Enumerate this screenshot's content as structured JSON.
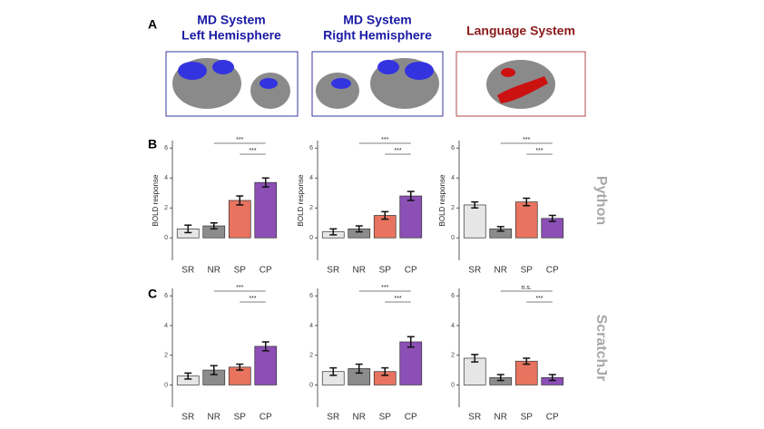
{
  "panel_labels": [
    "A",
    "B",
    "C"
  ],
  "systems": [
    {
      "title_lines": [
        "MD System",
        "Left Hemisphere"
      ],
      "color": "#1a1aa6"
    },
    {
      "title_lines": [
        "MD System",
        "Right Hemisphere"
      ],
      "color": "#1a1aa6"
    },
    {
      "title_lines": [
        "Language System"
      ],
      "color": "#8b1a1a"
    }
  ],
  "chart_data": [
    {
      "type": "bar",
      "categories": [
        "SR",
        "NR",
        "SP",
        "CP"
      ],
      "values": [
        0.6,
        0.8,
        2.5,
        3.7
      ],
      "errors": [
        0.25,
        0.2,
        0.3,
        0.3
      ],
      "colors": [
        "#e6e6e6",
        "#8c8c8c",
        "#e8735f",
        "#8c4fb5"
      ],
      "ylim": [
        -1.5,
        6.5
      ],
      "yticks": [
        0,
        2,
        4,
        6
      ],
      "ylabel": "BOLD response",
      "significance": [
        "***",
        "***"
      ]
    },
    {
      "type": "bar",
      "categories": [
        "SR",
        "NR",
        "SP",
        "CP"
      ],
      "values": [
        0.4,
        0.6,
        1.5,
        2.8
      ],
      "errors": [
        0.2,
        0.2,
        0.25,
        0.3
      ],
      "colors": [
        "#e6e6e6",
        "#8c8c8c",
        "#e8735f",
        "#8c4fb5"
      ],
      "ylim": [
        -1.5,
        6.5
      ],
      "yticks": [
        0,
        2,
        4,
        6
      ],
      "ylabel": "BOLD response",
      "significance": [
        "***",
        "***"
      ]
    },
    {
      "type": "bar",
      "categories": [
        "SR",
        "NR",
        "SP",
        "CP"
      ],
      "values": [
        2.2,
        0.6,
        2.4,
        1.3
      ],
      "errors": [
        0.2,
        0.15,
        0.25,
        0.2
      ],
      "colors": [
        "#e6e6e6",
        "#8c8c8c",
        "#e8735f",
        "#8c4fb5"
      ],
      "ylim": [
        -1.5,
        6.5
      ],
      "yticks": [
        0,
        2,
        4,
        6
      ],
      "ylabel": "BOLD response",
      "significance": [
        "***",
        "***"
      ],
      "row_label": "Python"
    },
    {
      "type": "bar",
      "categories": [
        "SR",
        "NR",
        "SP",
        "CP"
      ],
      "values": [
        0.6,
        1.0,
        1.2,
        2.6
      ],
      "errors": [
        0.2,
        0.3,
        0.2,
        0.3
      ],
      "colors": [
        "#e6e6e6",
        "#8c8c8c",
        "#e8735f",
        "#8c4fb5"
      ],
      "ylim": [
        -1.5,
        6.5
      ],
      "yticks": [
        0,
        2,
        4,
        6
      ],
      "significance": [
        "***",
        "***"
      ]
    },
    {
      "type": "bar",
      "categories": [
        "SR",
        "NR",
        "SP",
        "CP"
      ],
      "values": [
        0.9,
        1.1,
        0.9,
        2.9
      ],
      "errors": [
        0.25,
        0.3,
        0.25,
        0.35
      ],
      "colors": [
        "#e6e6e6",
        "#8c8c8c",
        "#e8735f",
        "#8c4fb5"
      ],
      "ylim": [
        -1.5,
        6.5
      ],
      "yticks": [
        0,
        2,
        4,
        6
      ],
      "significance": [
        "***",
        "***"
      ]
    },
    {
      "type": "bar",
      "categories": [
        "SR",
        "NR",
        "SP",
        "CP"
      ],
      "values": [
        1.8,
        0.5,
        1.6,
        0.5
      ],
      "errors": [
        0.25,
        0.2,
        0.2,
        0.2
      ],
      "colors": [
        "#e6e6e6",
        "#8c8c8c",
        "#e8735f",
        "#8c4fb5"
      ],
      "ylim": [
        -1.5,
        6.5
      ],
      "yticks": [
        0,
        2,
        4,
        6
      ],
      "significance": [
        "n.s.",
        "***"
      ],
      "row_label": "ScratchJr"
    }
  ]
}
